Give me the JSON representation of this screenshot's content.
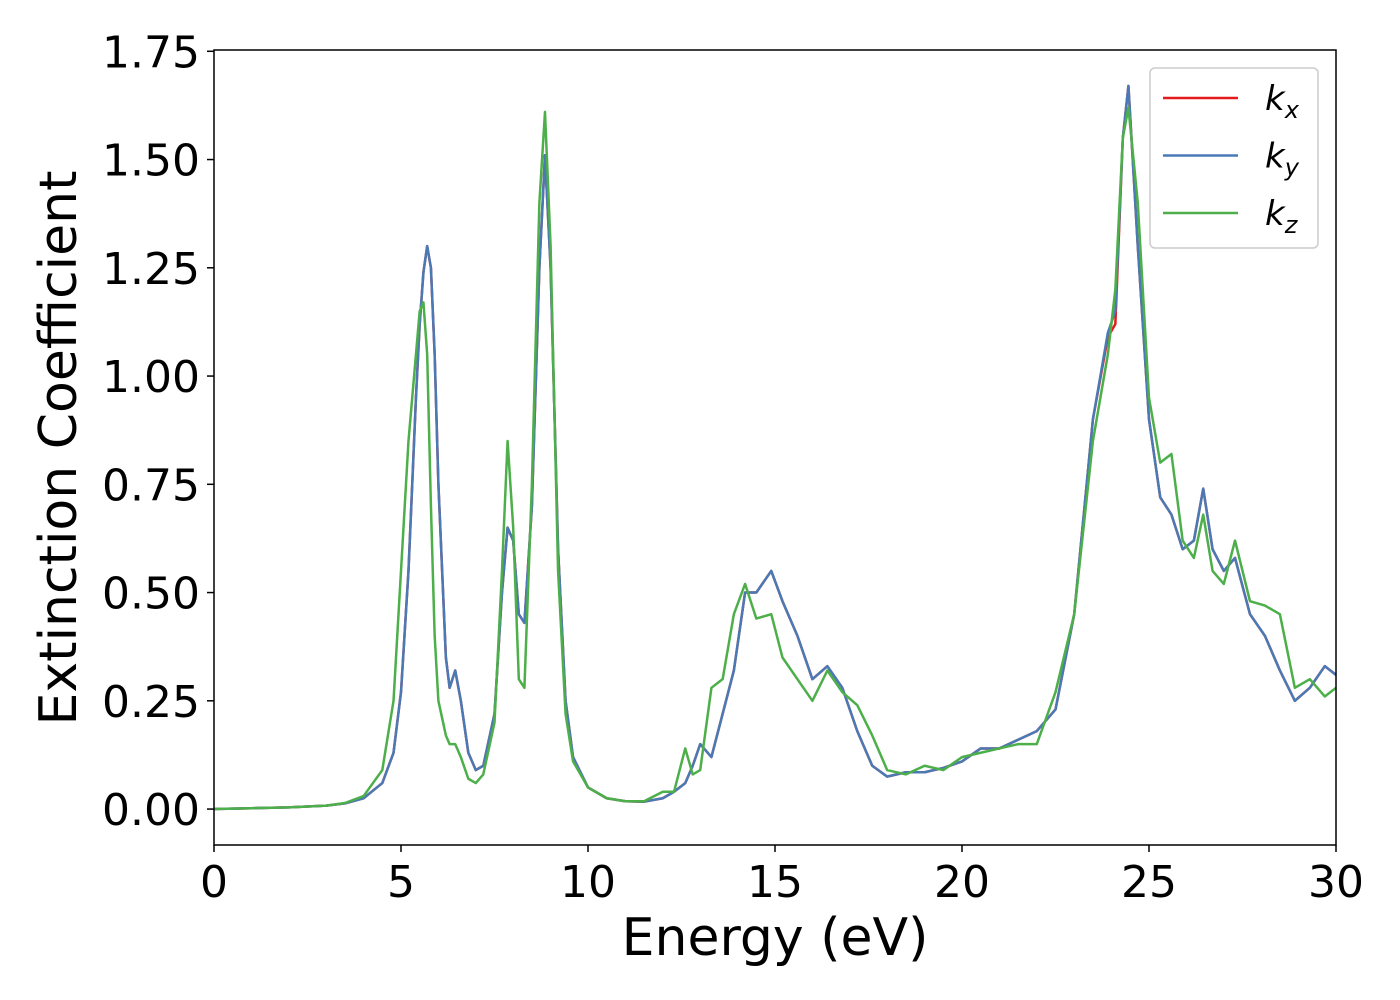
{
  "chart_data": {
    "type": "line",
    "x_label": "Energy (eV)",
    "y_label": "Extinction Coefficient",
    "x": [
      0,
      1,
      2,
      3,
      3.5,
      4,
      4.5,
      4.8,
      5.0,
      5.2,
      5.4,
      5.5,
      5.6,
      5.7,
      5.8,
      5.9,
      6.0,
      6.2,
      6.3,
      6.45,
      6.6,
      6.8,
      7.0,
      7.2,
      7.5,
      7.7,
      7.85,
      8.0,
      8.15,
      8.3,
      8.5,
      8.7,
      8.85,
      9.0,
      9.2,
      9.4,
      9.6,
      10,
      10.5,
      11,
      11.5,
      12,
      12.3,
      12.6,
      12.8,
      13.0,
      13.3,
      13.6,
      13.9,
      14.2,
      14.5,
      14.9,
      15.2,
      15.6,
      16.0,
      16.4,
      16.8,
      17.2,
      17.6,
      18.0,
      18.5,
      19,
      19.5,
      20,
      20.5,
      21,
      21.5,
      22,
      22.5,
      23,
      23.5,
      23.9,
      24.1,
      24.3,
      24.45,
      24.7,
      25.0,
      25.3,
      25.6,
      25.9,
      26.2,
      26.45,
      26.7,
      27.0,
      27.3,
      27.7,
      28.1,
      28.5,
      28.9,
      29.3,
      29.7,
      30
    ],
    "series": [
      {
        "name": "kx",
        "color": "#e41a1c",
        "values": [
          0,
          0.002,
          0.004,
          0.008,
          0.013,
          0.025,
          0.06,
          0.13,
          0.27,
          0.55,
          0.95,
          1.12,
          1.24,
          1.3,
          1.25,
          1.05,
          0.75,
          0.35,
          0.28,
          0.32,
          0.25,
          0.13,
          0.09,
          0.1,
          0.22,
          0.5,
          0.65,
          0.62,
          0.45,
          0.43,
          0.7,
          1.25,
          1.51,
          1.25,
          0.6,
          0.25,
          0.12,
          0.05,
          0.025,
          0.018,
          0.017,
          0.025,
          0.04,
          0.06,
          0.1,
          0.15,
          0.12,
          0.22,
          0.32,
          0.5,
          0.5,
          0.55,
          0.48,
          0.4,
          0.3,
          0.33,
          0.28,
          0.18,
          0.1,
          0.075,
          0.085,
          0.085,
          0.095,
          0.11,
          0.14,
          0.14,
          0.16,
          0.18,
          0.23,
          0.45,
          0.9,
          1.09,
          1.12,
          1.55,
          1.67,
          1.3,
          0.9,
          0.72,
          0.68,
          0.6,
          0.62,
          0.74,
          0.6,
          0.55,
          0.58,
          0.45,
          0.4,
          0.32,
          0.25,
          0.28,
          0.33,
          0.31
        ]
      },
      {
        "name": "ky",
        "color": "#4a7ab5",
        "values": [
          0,
          0.002,
          0.004,
          0.008,
          0.013,
          0.025,
          0.06,
          0.13,
          0.27,
          0.55,
          0.95,
          1.12,
          1.24,
          1.3,
          1.25,
          1.05,
          0.75,
          0.35,
          0.28,
          0.32,
          0.25,
          0.13,
          0.09,
          0.1,
          0.22,
          0.5,
          0.65,
          0.62,
          0.45,
          0.43,
          0.7,
          1.25,
          1.51,
          1.25,
          0.6,
          0.25,
          0.12,
          0.05,
          0.025,
          0.018,
          0.017,
          0.025,
          0.04,
          0.06,
          0.1,
          0.15,
          0.12,
          0.22,
          0.32,
          0.5,
          0.5,
          0.55,
          0.48,
          0.4,
          0.3,
          0.33,
          0.28,
          0.18,
          0.1,
          0.075,
          0.085,
          0.085,
          0.095,
          0.11,
          0.14,
          0.14,
          0.16,
          0.18,
          0.23,
          0.45,
          0.9,
          1.1,
          1.15,
          1.55,
          1.67,
          1.3,
          0.9,
          0.72,
          0.68,
          0.6,
          0.62,
          0.74,
          0.6,
          0.55,
          0.58,
          0.45,
          0.4,
          0.32,
          0.25,
          0.28,
          0.33,
          0.31
        ]
      },
      {
        "name": "kz",
        "color": "#4daf4a",
        "values": [
          0,
          0.002,
          0.004,
          0.008,
          0.014,
          0.03,
          0.09,
          0.25,
          0.55,
          0.85,
          1.05,
          1.15,
          1.17,
          1.05,
          0.7,
          0.4,
          0.25,
          0.17,
          0.15,
          0.15,
          0.12,
          0.07,
          0.06,
          0.08,
          0.2,
          0.55,
          0.85,
          0.65,
          0.3,
          0.28,
          0.75,
          1.4,
          1.61,
          1.3,
          0.55,
          0.22,
          0.11,
          0.05,
          0.025,
          0.018,
          0.018,
          0.04,
          0.04,
          0.14,
          0.08,
          0.09,
          0.28,
          0.3,
          0.45,
          0.52,
          0.44,
          0.45,
          0.35,
          0.3,
          0.25,
          0.32,
          0.27,
          0.24,
          0.17,
          0.09,
          0.08,
          0.1,
          0.09,
          0.12,
          0.13,
          0.14,
          0.15,
          0.15,
          0.27,
          0.45,
          0.85,
          1.05,
          1.2,
          1.55,
          1.62,
          1.4,
          0.95,
          0.8,
          0.82,
          0.62,
          0.58,
          0.68,
          0.55,
          0.52,
          0.62,
          0.48,
          0.47,
          0.45,
          0.28,
          0.3,
          0.26,
          0.28
        ]
      }
    ],
    "xlim": [
      0,
      30
    ],
    "xticks": [
      0,
      5,
      10,
      15,
      20,
      25,
      30
    ],
    "ylim": [
      -0.083,
      1.753
    ],
    "yticks": [
      {
        "value": 0,
        "label": "0.00"
      },
      {
        "value": 0.25,
        "label": "0.25"
      },
      {
        "value": 0.5,
        "label": "0.50"
      },
      {
        "value": 0.75,
        "label": "0.75"
      },
      {
        "value": 1,
        "label": "1.00"
      },
      {
        "value": 1.25,
        "label": "1.25"
      },
      {
        "value": 1.5,
        "label": "1.50"
      },
      {
        "value": 1.75,
        "label": "1.75"
      }
    ],
    "legend": "upper right"
  }
}
